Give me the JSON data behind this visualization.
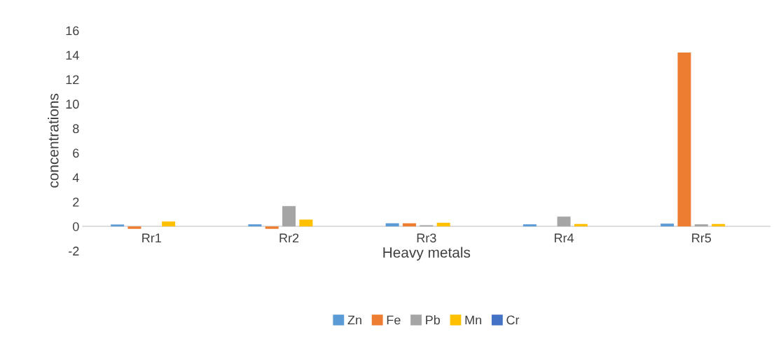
{
  "chart_data": {
    "type": "bar",
    "xlabel": "Heavy metals",
    "ylabel": "concentrations",
    "categories": [
      "Rr1",
      "Rr2",
      "Rr3",
      "Rr4",
      "Rr5"
    ],
    "series": [
      {
        "name": "Zn",
        "color": "#5b9bd5",
        "values": [
          0.15,
          0.17,
          0.25,
          0.17,
          0.22
        ]
      },
      {
        "name": "Fe",
        "color": "#ed7d31",
        "values": [
          -0.2,
          -0.2,
          0.25,
          0,
          14.2
        ]
      },
      {
        "name": "Pb",
        "color": "#a5a5a5",
        "values": [
          0,
          1.65,
          0.1,
          0.8,
          0.17
        ]
      },
      {
        "name": "Mn",
        "color": "#ffc000",
        "values": [
          0.4,
          0.55,
          0.3,
          0.2,
          0.2
        ]
      },
      {
        "name": "Cr",
        "color": "#4472c4",
        "values": [
          0,
          0,
          0,
          0,
          0
        ]
      }
    ],
    "ylim": [
      -2,
      16
    ],
    "yticks": [
      -2,
      0,
      2,
      4,
      6,
      8,
      10,
      12,
      14,
      16
    ],
    "grid": false,
    "legend": "bottom"
  }
}
